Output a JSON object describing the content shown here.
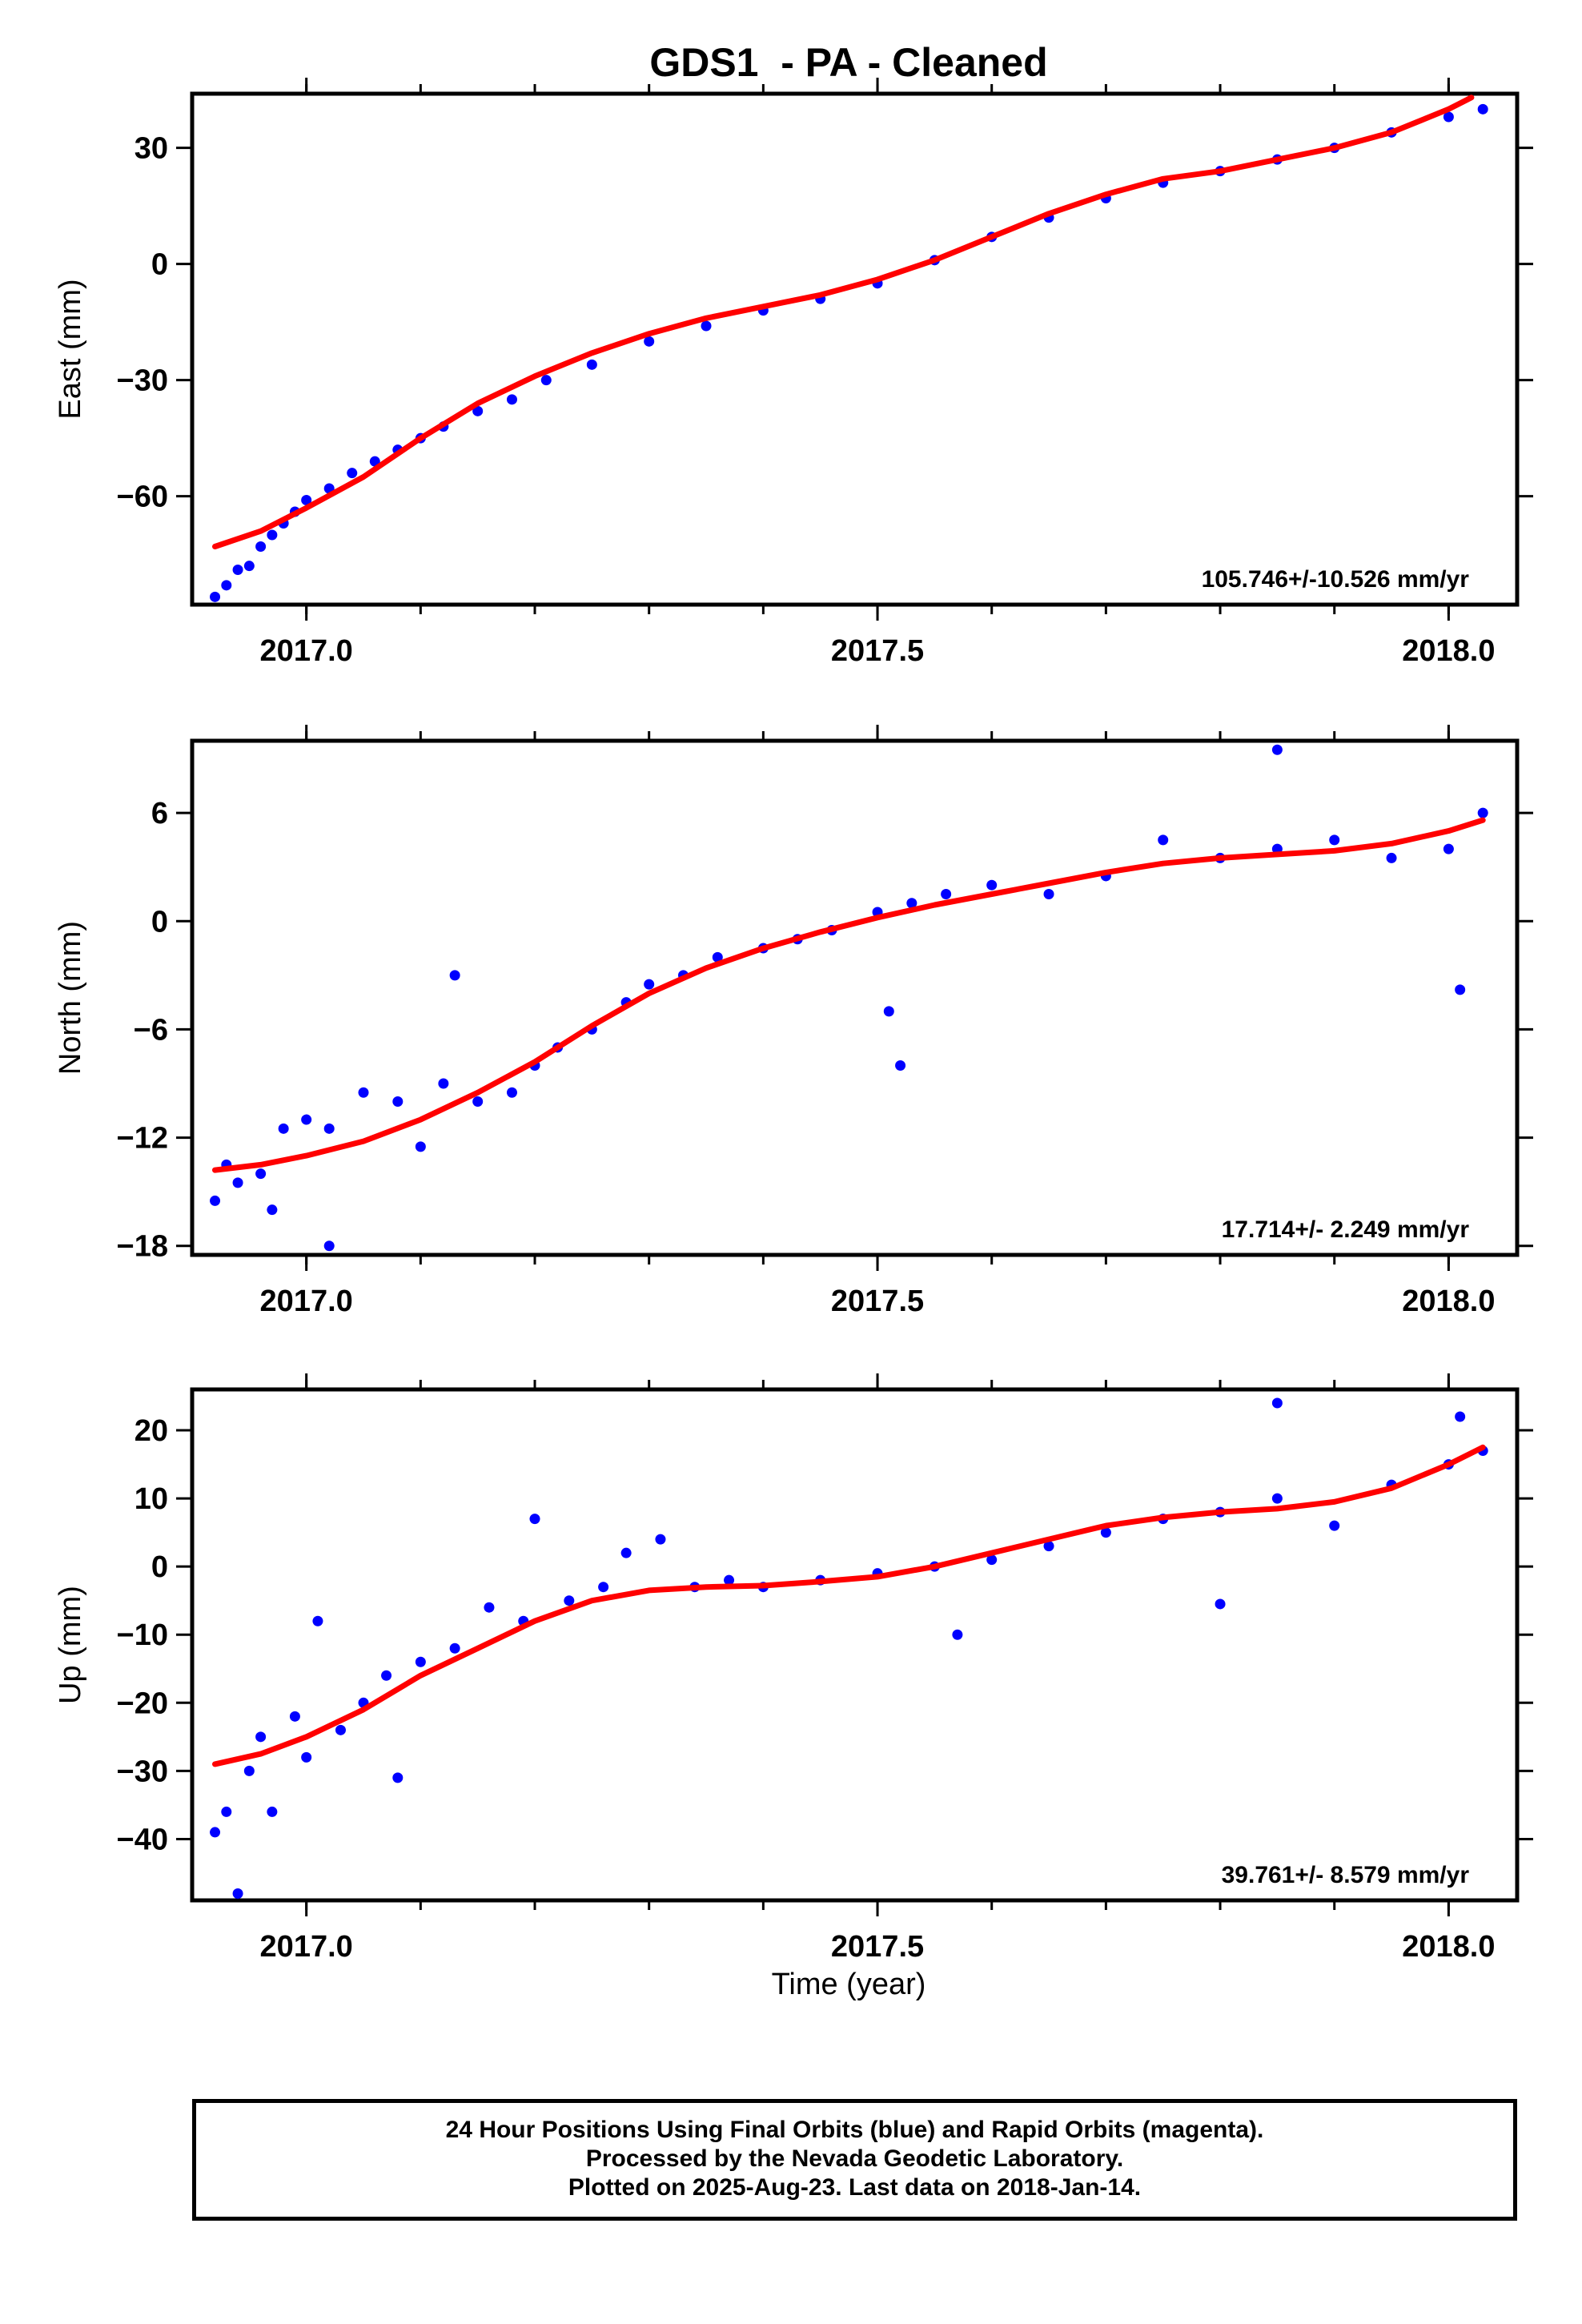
{
  "title": "GDS1  - PA - Cleaned",
  "xlabel": "Time (year)",
  "footer": {
    "line1": "24 Hour Positions Using Final Orbits (blue) and Rapid Orbits (magenta).",
    "line2": "Processed by the Nevada Geodetic Laboratory.",
    "line3": "Plotted on 2025-Aug-23. Last data on 2018-Jan-14."
  },
  "colors": {
    "points": "#0000ff",
    "fit": "#ff0000",
    "axes": "#000000"
  },
  "chart_data": [
    {
      "type": "scatter",
      "ylabel": "East (mm)",
      "rate_label": "105.746+/-10.526 mm/yr",
      "xlim": [
        2016.9,
        2018.06
      ],
      "ylim": [
        -88,
        44
      ],
      "yticks": [
        30,
        0,
        -30,
        -60
      ],
      "ytick_labels": [
        "30",
        "0",
        "−30",
        "−60"
      ],
      "xticks": [
        2017.0,
        2017.5,
        2018.0
      ],
      "xtick_labels": [
        "2017.0",
        "2017.5",
        "2018.0"
      ],
      "points": [
        [
          2016.92,
          -86.0
        ],
        [
          2016.93,
          -83.0
        ],
        [
          2016.94,
          -79.0
        ],
        [
          2016.95,
          -78.0
        ],
        [
          2016.96,
          -73.0
        ],
        [
          2016.97,
          -70.0
        ],
        [
          2016.98,
          -67.0
        ],
        [
          2016.99,
          -64.0
        ],
        [
          2017.0,
          -61.0
        ],
        [
          2017.02,
          -58.0
        ],
        [
          2017.04,
          -54.0
        ],
        [
          2017.06,
          -51.0
        ],
        [
          2017.08,
          -48.0
        ],
        [
          2017.1,
          -45.0
        ],
        [
          2017.12,
          -42.0
        ],
        [
          2017.15,
          -38.0
        ],
        [
          2017.18,
          -35.0
        ],
        [
          2017.21,
          -30.0
        ],
        [
          2017.25,
          -26.0
        ],
        [
          2017.3,
          -20.0
        ],
        [
          2017.35,
          -16.0
        ],
        [
          2017.4,
          -12.0
        ],
        [
          2017.45,
          -9.0
        ],
        [
          2017.5,
          -5.0
        ],
        [
          2017.55,
          1.0
        ],
        [
          2017.6,
          7.0
        ],
        [
          2017.65,
          12.0
        ],
        [
          2017.7,
          17.0
        ],
        [
          2017.75,
          21.0
        ],
        [
          2017.8,
          24.0
        ],
        [
          2017.85,
          27.0
        ],
        [
          2017.9,
          30.0
        ],
        [
          2017.95,
          34.0
        ],
        [
          2018.0,
          38.0
        ],
        [
          2018.03,
          40.0
        ]
      ],
      "fit": [
        [
          2016.92,
          -73.0
        ],
        [
          2016.96,
          -69.0
        ],
        [
          2017.0,
          -63.0
        ],
        [
          2017.05,
          -55.0
        ],
        [
          2017.1,
          -45.0
        ],
        [
          2017.15,
          -36.0
        ],
        [
          2017.2,
          -29.0
        ],
        [
          2017.25,
          -23.0
        ],
        [
          2017.3,
          -18.0
        ],
        [
          2017.35,
          -14.0
        ],
        [
          2017.4,
          -11.0
        ],
        [
          2017.45,
          -8.0
        ],
        [
          2017.5,
          -4.0
        ],
        [
          2017.55,
          1.0
        ],
        [
          2017.6,
          7.0
        ],
        [
          2017.65,
          13.0
        ],
        [
          2017.7,
          18.0
        ],
        [
          2017.75,
          22.0
        ],
        [
          2017.8,
          24.0
        ],
        [
          2017.85,
          27.0
        ],
        [
          2017.9,
          30.0
        ],
        [
          2017.95,
          34.0
        ],
        [
          2018.0,
          40.0
        ],
        [
          2018.02,
          43.0
        ]
      ]
    },
    {
      "type": "scatter",
      "ylabel": "North (mm)",
      "rate_label": "17.714+/- 2.249 mm/yr",
      "xlim": [
        2016.9,
        2018.06
      ],
      "ylim": [
        -18.5,
        10
      ],
      "yticks": [
        6,
        0,
        -6,
        -12,
        -18
      ],
      "ytick_labels": [
        "6",
        "0",
        "−6",
        "−12",
        "−18"
      ],
      "xticks": [
        2017.0,
        2017.5,
        2018.0
      ],
      "xtick_labels": [
        "2017.0",
        "2017.5",
        "2018.0"
      ],
      "points": [
        [
          2016.92,
          -15.5
        ],
        [
          2016.93,
          -13.5
        ],
        [
          2016.94,
          -14.5
        ],
        [
          2016.96,
          -14.0
        ],
        [
          2016.97,
          -16.0
        ],
        [
          2016.98,
          -11.5
        ],
        [
          2017.0,
          -11.0
        ],
        [
          2017.02,
          -11.5
        ],
        [
          2017.05,
          -9.5
        ],
        [
          2017.08,
          -10.0
        ],
        [
          2017.1,
          -12.5
        ],
        [
          2017.12,
          -9.0
        ],
        [
          2017.15,
          -10.0
        ],
        [
          2017.18,
          -9.5
        ],
        [
          2017.2,
          -8.0
        ],
        [
          2017.22,
          -7.0
        ],
        [
          2017.25,
          -6.0
        ],
        [
          2017.28,
          -4.5
        ],
        [
          2017.3,
          -3.5
        ],
        [
          2017.33,
          -3.0
        ],
        [
          2017.36,
          -2.0
        ],
        [
          2017.4,
          -1.5
        ],
        [
          2017.43,
          -1.0
        ],
        [
          2017.46,
          -0.5
        ],
        [
          2017.5,
          0.5
        ],
        [
          2017.53,
          1.0
        ],
        [
          2017.56,
          1.5
        ],
        [
          2017.6,
          2.0
        ],
        [
          2017.65,
          1.5
        ],
        [
          2017.7,
          2.5
        ],
        [
          2017.75,
          4.5
        ],
        [
          2017.8,
          3.5
        ],
        [
          2017.85,
          4.0
        ],
        [
          2017.9,
          4.5
        ],
        [
          2017.95,
          3.5
        ],
        [
          2018.0,
          4.0
        ],
        [
          2018.03,
          6.0
        ],
        [
          2017.02,
          -18.0
        ],
        [
          2017.13,
          -3.0
        ],
        [
          2017.52,
          -8.0
        ],
        [
          2017.85,
          9.5
        ],
        [
          2018.01,
          -3.8
        ],
        [
          2017.51,
          -5.0
        ]
      ],
      "fit": [
        [
          2016.92,
          -13.8
        ],
        [
          2016.96,
          -13.5
        ],
        [
          2017.0,
          -13.0
        ],
        [
          2017.05,
          -12.2
        ],
        [
          2017.1,
          -11.0
        ],
        [
          2017.15,
          -9.5
        ],
        [
          2017.2,
          -7.8
        ],
        [
          2017.25,
          -5.8
        ],
        [
          2017.3,
          -4.0
        ],
        [
          2017.35,
          -2.6
        ],
        [
          2017.4,
          -1.5
        ],
        [
          2017.45,
          -0.6
        ],
        [
          2017.5,
          0.2
        ],
        [
          2017.55,
          0.9
        ],
        [
          2017.6,
          1.5
        ],
        [
          2017.65,
          2.1
        ],
        [
          2017.7,
          2.7
        ],
        [
          2017.75,
          3.2
        ],
        [
          2017.8,
          3.5
        ],
        [
          2017.85,
          3.7
        ],
        [
          2017.9,
          3.9
        ],
        [
          2017.95,
          4.3
        ],
        [
          2018.0,
          5.0
        ],
        [
          2018.03,
          5.6
        ]
      ]
    },
    {
      "type": "scatter",
      "ylabel": "Up (mm)",
      "rate_label": "39.761+/- 8.579 mm/yr",
      "xlim": [
        2016.9,
        2018.06
      ],
      "ylim": [
        -49,
        26
      ],
      "yticks": [
        20,
        10,
        0,
        -10,
        -20,
        -30,
        -40
      ],
      "ytick_labels": [
        "20",
        "10",
        "0",
        "−10",
        "−20",
        "−30",
        "−40"
      ],
      "xticks": [
        2017.0,
        2017.5,
        2018.0
      ],
      "xtick_labels": [
        "2017.0",
        "2017.5",
        "2018.0"
      ],
      "points": [
        [
          2016.92,
          -39.0
        ],
        [
          2016.93,
          -36.0
        ],
        [
          2016.94,
          -48.0
        ],
        [
          2016.95,
          -30.0
        ],
        [
          2016.96,
          -25.0
        ],
        [
          2016.97,
          -36.0
        ],
        [
          2016.99,
          -22.0
        ],
        [
          2017.0,
          -28.0
        ],
        [
          2017.01,
          -8.0
        ],
        [
          2017.03,
          -24.0
        ],
        [
          2017.05,
          -20.0
        ],
        [
          2017.07,
          -16.0
        ],
        [
          2017.08,
          -31.0
        ],
        [
          2017.1,
          -14.0
        ],
        [
          2017.13,
          -12.0
        ],
        [
          2017.16,
          -6.0
        ],
        [
          2017.19,
          -8.0
        ],
        [
          2017.2,
          7.0
        ],
        [
          2017.23,
          -5.0
        ],
        [
          2017.26,
          -3.0
        ],
        [
          2017.28,
          2.0
        ],
        [
          2017.31,
          4.0
        ],
        [
          2017.34,
          -3.0
        ],
        [
          2017.37,
          -2.0
        ],
        [
          2017.4,
          -3.0
        ],
        [
          2017.45,
          -2.0
        ],
        [
          2017.5,
          -1.0
        ],
        [
          2017.55,
          0.0
        ],
        [
          2017.6,
          1.0
        ],
        [
          2017.65,
          3.0
        ],
        [
          2017.7,
          5.0
        ],
        [
          2017.75,
          7.0
        ],
        [
          2017.8,
          8.0
        ],
        [
          2017.85,
          10.0
        ],
        [
          2017.9,
          6.0
        ],
        [
          2017.95,
          12.0
        ],
        [
          2018.0,
          15.0
        ],
        [
          2018.03,
          17.0
        ],
        [
          2017.85,
          24.0
        ],
        [
          2018.01,
          22.0
        ],
        [
          2017.8,
          -5.5
        ],
        [
          2017.57,
          -10.0
        ]
      ],
      "fit": [
        [
          2016.92,
          -29.0
        ],
        [
          2016.96,
          -27.5
        ],
        [
          2017.0,
          -25.0
        ],
        [
          2017.05,
          -21.0
        ],
        [
          2017.1,
          -16.0
        ],
        [
          2017.15,
          -12.0
        ],
        [
          2017.2,
          -8.0
        ],
        [
          2017.25,
          -5.0
        ],
        [
          2017.3,
          -3.5
        ],
        [
          2017.35,
          -3.0
        ],
        [
          2017.4,
          -2.8
        ],
        [
          2017.45,
          -2.2
        ],
        [
          2017.5,
          -1.5
        ],
        [
          2017.55,
          0.0
        ],
        [
          2017.6,
          2.0
        ],
        [
          2017.65,
          4.0
        ],
        [
          2017.7,
          6.0
        ],
        [
          2017.75,
          7.2
        ],
        [
          2017.8,
          8.0
        ],
        [
          2017.85,
          8.5
        ],
        [
          2017.9,
          9.5
        ],
        [
          2017.95,
          11.5
        ],
        [
          2018.0,
          15.0
        ],
        [
          2018.03,
          17.5
        ]
      ]
    }
  ]
}
